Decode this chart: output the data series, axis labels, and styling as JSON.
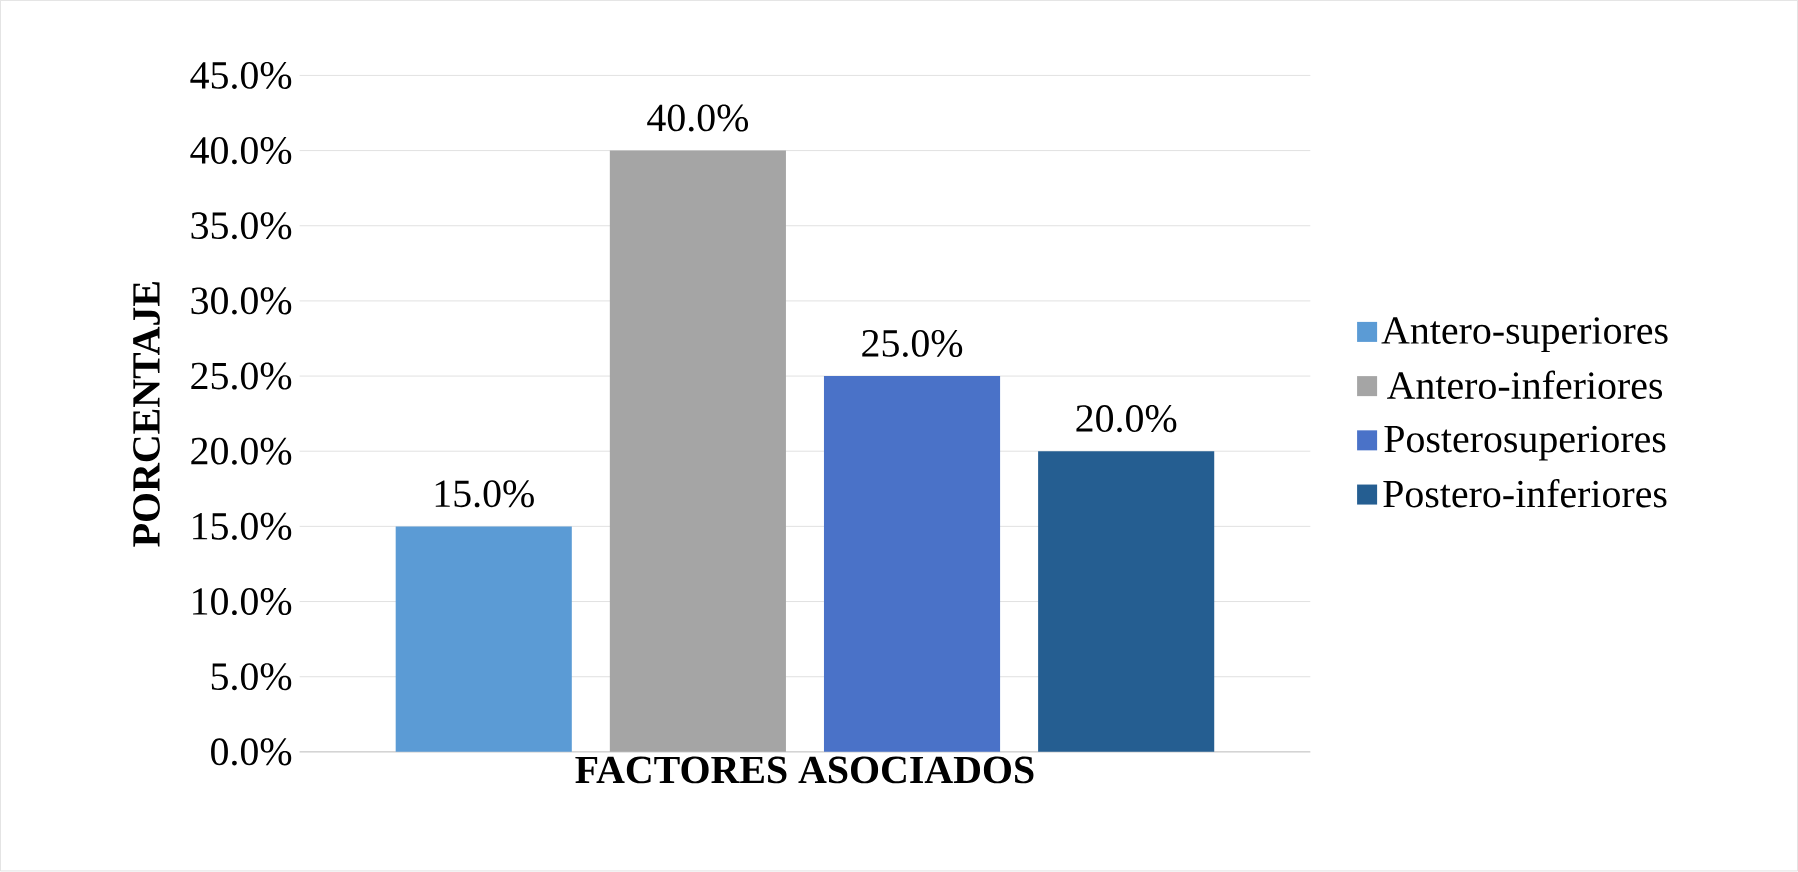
{
  "chart_data": {
    "type": "bar",
    "xlabel": "FACTORES ASOCIADOS",
    "ylabel": "PORCENTAJE",
    "categories": [
      null
    ],
    "series": [
      {
        "name": "Antero-superiores",
        "color": "#5b9bd5",
        "values": [
          15
        ],
        "value_labels": [
          "15.0%"
        ]
      },
      {
        "name": "Antero-inferiores",
        "color": "#a5a5a5",
        "values": [
          40
        ],
        "value_labels": [
          "40.0%"
        ]
      },
      {
        "name": "Posterosuperiores",
        "color": "#4a72c8",
        "values": [
          25
        ],
        "value_labels": [
          "25.0%"
        ]
      },
      {
        "name": "Postero-inferiores",
        "color": "#255e91",
        "values": [
          20
        ],
        "value_labels": [
          "20.0%"
        ]
      }
    ],
    "ylim": [
      0,
      45
    ],
    "yticks": [
      {
        "value": 0,
        "label": "0.0%"
      },
      {
        "value": 5,
        "label": "5.0%"
      },
      {
        "value": 10,
        "label": "10.0%"
      },
      {
        "value": 15,
        "label": "15.0%"
      },
      {
        "value": 20,
        "label": "20.0%"
      },
      {
        "value": 25,
        "label": "25.0%"
      },
      {
        "value": 30,
        "label": "30.0%"
      },
      {
        "value": 35,
        "label": "35.0%"
      },
      {
        "value": 40,
        "label": "40.0%"
      },
      {
        "value": 45,
        "label": "45.0%"
      }
    ],
    "grid": "y",
    "legend": "right"
  }
}
